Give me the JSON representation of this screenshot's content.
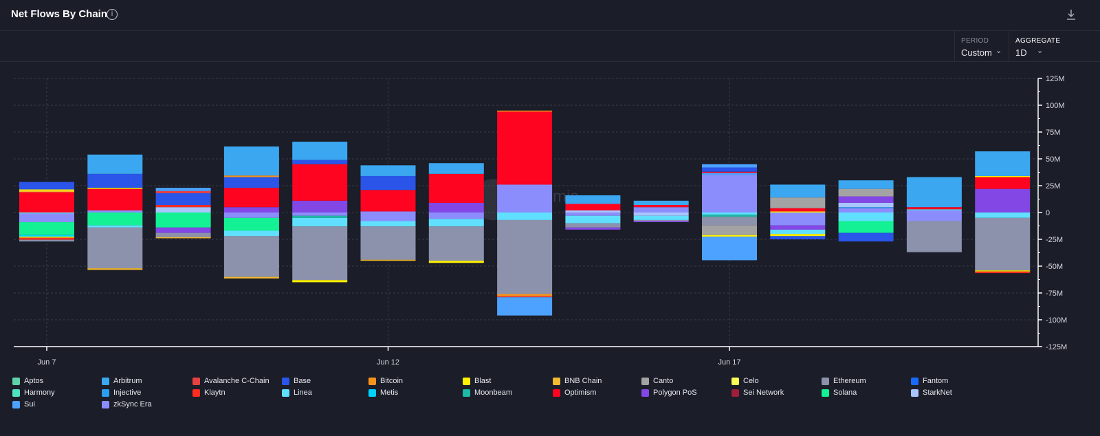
{
  "header": {
    "title": "Net Flows By Chain",
    "info_icon": "info-icon",
    "download_icon": "download-icon"
  },
  "controls": {
    "period": {
      "label": "PERIOD",
      "value": "Custom"
    },
    "aggregate": {
      "label": "AGGREGATE",
      "value": "1D"
    }
  },
  "watermark": "Artemis",
  "chart_data": {
    "type": "bar",
    "stacked": true,
    "title": "Net Flows By Chain",
    "xlabel": "",
    "ylabel": "",
    "ylim": [
      -125000000,
      125000000
    ],
    "y_ticks": [
      125000000,
      100000000,
      75000000,
      50000000,
      25000000,
      0,
      -25000000,
      -50000000,
      -75000000,
      -100000000,
      -125000000
    ],
    "y_tick_labels": [
      "125M",
      "100M",
      "75M",
      "50M",
      "25M",
      "0",
      "-25M",
      "-50M",
      "-75M",
      "-100M",
      "-125M"
    ],
    "x_tick_labels": [
      {
        "label": "Jun 7",
        "index": 0
      },
      {
        "label": "Jun 12",
        "index": 5
      },
      {
        "label": "Jun 17",
        "index": 10
      }
    ],
    "categories": [
      "Jun 7",
      "Jun 8",
      "Jun 9",
      "Jun 10",
      "Jun 11",
      "Jun 12",
      "Jun 13",
      "Jun 14",
      "Jun 15",
      "Jun 16",
      "Jun 17",
      "Jun 18",
      "Jun 19",
      "Jun 20",
      "Jun 21"
    ],
    "grid": true,
    "legend_position": "bottom",
    "legend": [
      {
        "name": "Aptos",
        "color": "#5fd3a8"
      },
      {
        "name": "Arbitrum",
        "color": "#3ba7f0"
      },
      {
        "name": "Avalanche C-Chain",
        "color": "#e84142"
      },
      {
        "name": "Base",
        "color": "#2a55e8"
      },
      {
        "name": "Bitcoin",
        "color": "#f7931a"
      },
      {
        "name": "Blast",
        "color": "#fff200"
      },
      {
        "name": "BNB Chain",
        "color": "#f3ba2f"
      },
      {
        "name": "Canto",
        "color": "#a3a3a3"
      },
      {
        "name": "Celo",
        "color": "#fcff52"
      },
      {
        "name": "Ethereum",
        "color": "#8c92ac"
      },
      {
        "name": "Fantom",
        "color": "#1969ff"
      },
      {
        "name": "Harmony",
        "color": "#50e3c2"
      },
      {
        "name": "Injective",
        "color": "#2b9ff2"
      },
      {
        "name": "Klaytn",
        "color": "#ff2d20"
      },
      {
        "name": "Linea",
        "color": "#61dfff"
      },
      {
        "name": "Metis",
        "color": "#00d2ff"
      },
      {
        "name": "Moonbeam",
        "color": "#1eb8a6"
      },
      {
        "name": "Optimism",
        "color": "#ff0420"
      },
      {
        "name": "Polygon PoS",
        "color": "#8247e5"
      },
      {
        "name": "Sei Network",
        "color": "#9e1f3a"
      },
      {
        "name": "Solana",
        "color": "#14f195"
      },
      {
        "name": "StarkNet",
        "color": "#a9c4ff"
      },
      {
        "name": "Sui",
        "color": "#4da2ff"
      },
      {
        "name": "zkSync Era",
        "color": "#8c8dfc"
      }
    ],
    "bars": [
      {
        "pos": [
          [
            "Optimism",
            19000000
          ],
          [
            "BNB Chain",
            1500000
          ],
          [
            "Blast",
            1000000
          ],
          [
            "Base",
            7000000
          ]
        ],
        "neg": [
          [
            "Linea",
            -1000000
          ],
          [
            "zkSync Era",
            -8000000
          ],
          [
            "Solana",
            -12000000
          ],
          [
            "Metis",
            -1500000
          ],
          [
            "Blast",
            -1000000
          ],
          [
            "Klaytn",
            -1000000
          ],
          [
            "Avalanche C-Chain",
            -1000000
          ],
          [
            "Ethereum",
            -1500000
          ]
        ]
      },
      {
        "pos": [
          [
            "zkSync Era",
            2000000
          ],
          [
            "Optimism",
            20000000
          ],
          [
            "Blast",
            1000000
          ],
          [
            "Base",
            13000000
          ],
          [
            "Arbitrum",
            18000000
          ]
        ],
        "neg": [
          [
            "Solana",
            -12000000
          ],
          [
            "Linea",
            -2000000
          ],
          [
            "Ethereum",
            -38000000
          ],
          [
            "BNB Chain",
            -1500000
          ]
        ]
      },
      {
        "pos": [
          [
            "StarkNet",
            5000000
          ],
          [
            "Klaytn",
            2000000
          ],
          [
            "Base",
            11000000
          ],
          [
            "Avalanche C-Chain",
            2000000
          ],
          [
            "Sui",
            3000000
          ]
        ],
        "neg": [
          [
            "Solana",
            -14000000
          ],
          [
            "Polygon PoS",
            -5000000
          ],
          [
            "Ethereum",
            -4000000
          ],
          [
            "BNB Chain",
            -1000000
          ]
        ]
      },
      {
        "pos": [
          [
            "Polygon PoS",
            5000000
          ],
          [
            "Optimism",
            18000000
          ],
          [
            "Base",
            10000000
          ],
          [
            "Bitcoin",
            1500000
          ],
          [
            "Arbitrum",
            27000000
          ]
        ],
        "neg": [
          [
            "zkSync Era",
            -5000000
          ],
          [
            "Solana",
            -12000000
          ],
          [
            "Linea",
            -5000000
          ],
          [
            "Ethereum",
            -38000000
          ],
          [
            "BNB Chain",
            -1500000
          ]
        ]
      },
      {
        "pos": [
          [
            "Polygon PoS",
            11000000
          ],
          [
            "Optimism",
            34000000
          ],
          [
            "Base",
            4000000
          ],
          [
            "Arbitrum",
            17000000
          ]
        ],
        "neg": [
          [
            "zkSync Era",
            -3000000
          ],
          [
            "Moonbeam",
            -2000000
          ],
          [
            "Linea",
            -8000000
          ],
          [
            "Ethereum",
            -50000000
          ],
          [
            "Blast",
            -2000000
          ]
        ]
      },
      {
        "pos": [
          [
            "zkSync Era",
            1000000
          ],
          [
            "Optimism",
            20000000
          ],
          [
            "Base",
            13000000
          ],
          [
            "Arbitrum",
            10000000
          ]
        ],
        "neg": [
          [
            "zkSync Era",
            -8000000
          ],
          [
            "Linea",
            -5000000
          ],
          [
            "Ethereum",
            -31000000
          ],
          [
            "BNB Chain",
            -1000000
          ]
        ]
      },
      {
        "pos": [
          [
            "Polygon PoS",
            9000000
          ],
          [
            "Optimism",
            27000000
          ],
          [
            "Arbitrum",
            10000000
          ]
        ],
        "neg": [
          [
            "zkSync Era",
            -6000000
          ],
          [
            "Linea",
            -7000000
          ],
          [
            "Ethereum",
            -32000000
          ],
          [
            "Blast",
            -2000000
          ]
        ]
      },
      {
        "pos": [
          [
            "zkSync Era",
            26000000
          ],
          [
            "Optimism",
            68000000
          ],
          [
            "Bitcoin",
            1000000
          ]
        ],
        "neg": [
          [
            "Linea",
            -7000000
          ],
          [
            "Ethereum",
            -69000000
          ],
          [
            "Bitcoin",
            -2000000
          ],
          [
            "Avalanche C-Chain",
            -1000000
          ],
          [
            "Sui",
            -17000000
          ]
        ]
      },
      {
        "pos": [
          [
            "StarkNet",
            2000000
          ],
          [
            "Optimism",
            6000000
          ],
          [
            "Arbitrum",
            8000000
          ]
        ],
        "neg": [
          [
            "zkSync Era",
            -3000000
          ],
          [
            "Linea",
            -7000000
          ],
          [
            "Ethereum",
            -4000000
          ],
          [
            "Polygon PoS",
            -2000000
          ]
        ]
      },
      {
        "pos": [
          [
            "zkSync Era",
            5000000
          ],
          [
            "Optimism",
            2000000
          ],
          [
            "Arbitrum",
            4000000
          ]
        ],
        "neg": [
          [
            "StarkNet",
            -3000000
          ],
          [
            "Linea",
            -4000000
          ],
          [
            "Ethereum",
            -1000000
          ],
          [
            "Polygon PoS",
            -1000000
          ]
        ]
      },
      {
        "pos": [
          [
            "zkSync Era",
            35000000
          ],
          [
            "Sui",
            2000000
          ],
          [
            "Optimism",
            1000000
          ],
          [
            "Base",
            4000000
          ],
          [
            "Sui",
            3000000
          ]
        ],
        "neg": [
          [
            "Linea",
            -2000000
          ],
          [
            "Moonbeam",
            -2000000
          ],
          [
            "Ethereum",
            -8000000
          ],
          [
            "Canto",
            -9000000
          ],
          [
            "Blast",
            -1500000
          ],
          [
            "Sui",
            -22000000
          ]
        ]
      },
      {
        "pos": [
          [
            "Blast",
            1000000
          ],
          [
            "Optimism",
            3000000
          ],
          [
            "Canto",
            10000000
          ],
          [
            "Arbitrum",
            12000000
          ]
        ],
        "neg": [
          [
            "zkSync Era",
            -12000000
          ],
          [
            "Polygon PoS",
            -4000000
          ],
          [
            "Linea",
            -4000000
          ],
          [
            "Blast",
            -2000000
          ],
          [
            "Base",
            -3000000
          ]
        ]
      },
      {
        "pos": [
          [
            "zkSync Era",
            4000000
          ],
          [
            "Injective",
            1000000
          ],
          [
            "StarkNet",
            4000000
          ],
          [
            "Polygon PoS",
            6000000
          ],
          [
            "Canto",
            7000000
          ],
          [
            "Arbitrum",
            8000000
          ]
        ],
        "neg": [
          [
            "Linea",
            -8000000
          ],
          [
            "Solana",
            -11000000
          ],
          [
            "Base",
            -8000000
          ]
        ]
      },
      {
        "pos": [
          [
            "zkSync Era",
            2000000
          ],
          [
            "Linea",
            1000000
          ],
          [
            "Optimism",
            2000000
          ],
          [
            "Arbitrum",
            28000000
          ]
        ],
        "neg": [
          [
            "zkSync Era",
            -8000000
          ],
          [
            "Ethereum",
            -29000000
          ]
        ]
      },
      {
        "pos": [
          [
            "Polygon PoS",
            22000000
          ],
          [
            "Optimism",
            11000000
          ],
          [
            "Blast",
            1000000
          ],
          [
            "Arbitrum",
            23000000
          ]
        ],
        "neg": [
          [
            "Linea",
            -5000000
          ],
          [
            "Ethereum",
            -49000000
          ],
          [
            "Blast",
            -1000000
          ],
          [
            "Klaytn",
            -1500000
          ]
        ]
      }
    ]
  }
}
